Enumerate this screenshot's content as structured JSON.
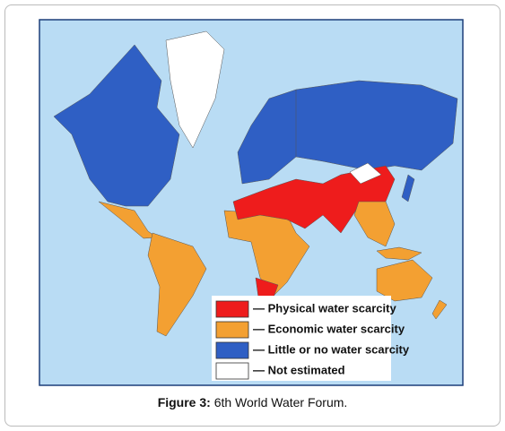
{
  "map": {
    "legend": [
      {
        "label": "— Physical water scarcity",
        "color": "#ee1c1c"
      },
      {
        "label": "— Economic water scarcity",
        "color": "#f3a032"
      },
      {
        "label": "— Little or no water scarcity",
        "color": "#2f5fc4"
      },
      {
        "label": "— Not estimated",
        "color": "#ffffff"
      }
    ]
  },
  "caption": {
    "label": "Figure 3:",
    "text": "6th World Water Forum."
  }
}
